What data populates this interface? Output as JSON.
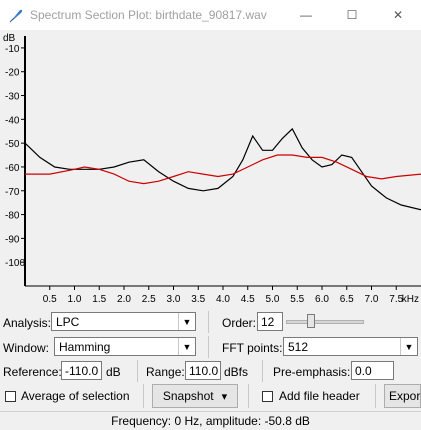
{
  "window": {
    "title": "Spectrum Section Plot: birthdate_90817.wav",
    "minimize_glyph": "—",
    "maximize_glyph": "☐",
    "close_glyph": "✕"
  },
  "chart_data": {
    "type": "line",
    "y_unit_label": "dB",
    "x_unit_label": "kHz",
    "ylim": [
      -110,
      -5
    ],
    "xlim": [
      0,
      8
    ],
    "y_ticks": [
      "-10",
      "-20",
      "-30",
      "-40",
      "-50",
      "-60",
      "-70",
      "-80",
      "-90",
      "-100"
    ],
    "x_ticks": [
      "0.5",
      "1.0",
      "1.5",
      "2.0",
      "2.5",
      "3.0",
      "3.5",
      "4.0",
      "4.5",
      "5.0",
      "5.5",
      "6.0",
      "6.5",
      "7.0",
      "7.5"
    ],
    "grid": false,
    "series": [
      {
        "color": "#000000",
        "x": [
          0,
          0.3,
          0.6,
          0.9,
          1.2,
          1.5,
          1.8,
          2.1,
          2.4,
          2.7,
          3.0,
          3.3,
          3.6,
          3.9,
          4.2,
          4.4,
          4.6,
          4.8,
          5.0,
          5.2,
          5.4,
          5.6,
          5.8,
          6.0,
          6.2,
          6.4,
          6.6,
          6.8,
          7.0,
          7.3,
          7.6,
          8.0
        ],
        "y": [
          -50,
          -56,
          -60,
          -61,
          -61,
          -61,
          -60,
          -58,
          -57,
          -62,
          -66,
          -69,
          -70,
          -69,
          -64,
          -57,
          -47,
          -53,
          -53,
          -48,
          -44,
          -52,
          -57,
          -60,
          -59,
          -55,
          -56,
          -62,
          -68,
          -73,
          -76,
          -78
        ]
      },
      {
        "color": "#cc0000",
        "x": [
          0,
          0.5,
          1.0,
          1.2,
          1.5,
          1.8,
          2.1,
          2.4,
          2.7,
          3.0,
          3.3,
          3.6,
          3.9,
          4.2,
          4.5,
          4.8,
          5.1,
          5.4,
          5.7,
          6.0,
          6.3,
          6.6,
          6.9,
          7.2,
          7.5,
          8.0
        ],
        "y": [
          -63,
          -63,
          -61,
          -60,
          -61,
          -63,
          -66,
          -67,
          -66,
          -64,
          -62,
          -63,
          -64,
          -63,
          -60,
          -57,
          -55,
          -55,
          -56,
          -56,
          -58,
          -61,
          -64,
          -65,
          -64,
          -63
        ]
      }
    ]
  },
  "controls": {
    "analysis_label": "Analysis:",
    "analysis_value": "LPC",
    "order_label": "Order:",
    "order_value": "12",
    "order_fraction": 0.33,
    "window_label": "Window:",
    "window_value": "Hamming",
    "fft_label": "FFT points:",
    "fft_value": "512",
    "reference_label": "Reference:",
    "reference_value": "-110.0",
    "reference_unit": "dB",
    "range_label": "Range:",
    "range_value": "110.0",
    "range_unit": "dBfs",
    "preemph_label": "Pre-emphasis:",
    "preemph_value": "0.0",
    "average_label": "Average of selection",
    "snapshot_label": "Snapshot",
    "add_header_label": "Add file header",
    "export_label": "Expor",
    "dropdown_glyph": "▼",
    "snapshot_glyph": "▾"
  },
  "status": {
    "text": "Frequency: 0 Hz, amplitude: -50.8 dB"
  }
}
